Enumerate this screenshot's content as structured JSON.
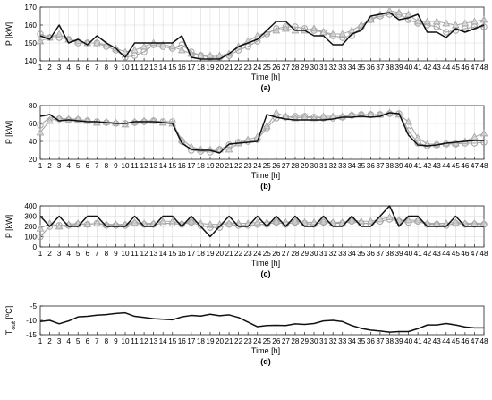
{
  "chart_data": [
    {
      "type": "line",
      "panel_label": "(a)",
      "xlabel": "Time [h]",
      "ylabel": "P [kW]",
      "ylim": [
        140,
        170
      ],
      "yticks": [
        140,
        150,
        160,
        170
      ],
      "grid": true,
      "x": [
        1,
        2,
        3,
        4,
        5,
        6,
        7,
        8,
        9,
        10,
        11,
        12,
        13,
        14,
        15,
        16,
        17,
        18,
        19,
        20,
        21,
        22,
        23,
        24,
        25,
        26,
        27,
        28,
        29,
        30,
        31,
        32,
        33,
        34,
        35,
        36,
        37,
        38,
        39,
        40,
        41,
        42,
        43,
        44,
        45,
        46,
        47,
        48
      ],
      "series": [
        {
          "style": "solid-black",
          "values": [
            154,
            152,
            160,
            150,
            152,
            149,
            154,
            150,
            147,
            142,
            150,
            150,
            150,
            150,
            150,
            154,
            142,
            141,
            141,
            141,
            144,
            148,
            150,
            152,
            157,
            162,
            162,
            157,
            157,
            154,
            154,
            149,
            149,
            155,
            157,
            165,
            166,
            167,
            163,
            164,
            166,
            156,
            156,
            153,
            158,
            156,
            158,
            160
          ]
        },
        {
          "style": "circle-gray",
          "values": [
            155,
            153,
            153,
            152,
            150,
            150,
            150,
            148,
            146,
            142,
            143,
            145,
            149,
            148,
            147,
            149,
            145,
            143,
            142,
            142,
            143,
            146,
            148,
            151,
            155,
            158,
            159,
            159,
            158,
            157,
            156,
            154,
            153,
            154,
            159,
            163,
            165,
            166,
            166,
            163,
            161,
            160,
            159,
            156,
            157,
            158,
            159,
            159
          ]
        },
        {
          "style": "triangle-gray",
          "values": [
            151,
            153,
            155,
            152,
            151,
            150,
            150,
            149,
            147,
            145,
            146,
            148,
            150,
            149,
            148,
            146,
            144,
            143,
            143,
            143,
            144,
            148,
            151,
            154,
            156,
            157,
            158,
            157,
            157,
            158,
            156,
            155,
            155,
            157,
            160,
            163,
            166,
            168,
            167,
            166,
            162,
            162,
            162,
            161,
            160,
            161,
            162,
            163
          ]
        }
      ]
    },
    {
      "type": "line",
      "panel_label": "(b)",
      "xlabel": "Time [h]",
      "ylabel": "P [kW]",
      "ylim": [
        20,
        80
      ],
      "yticks": [
        20,
        40,
        60,
        80
      ],
      "grid": true,
      "x": [
        1,
        2,
        3,
        4,
        5,
        6,
        7,
        8,
        9,
        10,
        11,
        12,
        13,
        14,
        15,
        16,
        17,
        18,
        19,
        20,
        21,
        22,
        23,
        24,
        25,
        26,
        27,
        28,
        29,
        30,
        31,
        32,
        33,
        34,
        35,
        36,
        37,
        38,
        39,
        40,
        41,
        42,
        43,
        44,
        45,
        46,
        47,
        48
      ],
      "series": [
        {
          "style": "solid-black",
          "values": [
            68,
            70,
            63,
            64,
            63,
            62,
            62,
            61,
            60,
            60,
            62,
            62,
            62,
            61,
            60,
            38,
            31,
            30,
            30,
            27,
            37,
            38,
            39,
            40,
            70,
            67,
            65,
            64,
            64,
            64,
            64,
            65,
            67,
            67,
            68,
            67,
            68,
            72,
            71,
            47,
            36,
            35,
            36,
            38,
            39,
            40,
            41,
            41
          ]
        },
        {
          "style": "circle-gray",
          "values": [
            58,
            67,
            65,
            64,
            64,
            63,
            62,
            61,
            60,
            60,
            61,
            62,
            63,
            62,
            62,
            40,
            30,
            29,
            28,
            31,
            36,
            39,
            40,
            42,
            55,
            66,
            67,
            68,
            68,
            67,
            66,
            66,
            67,
            69,
            70,
            70,
            70,
            71,
            71,
            52,
            38,
            35,
            36,
            37,
            37,
            38,
            38,
            39
          ]
        },
        {
          "style": "triangle-gray",
          "values": [
            50,
            63,
            66,
            65,
            65,
            63,
            61,
            62,
            61,
            59,
            62,
            63,
            63,
            61,
            60,
            42,
            34,
            31,
            31,
            31,
            31,
            38,
            42,
            45,
            57,
            72,
            68,
            66,
            67,
            66,
            68,
            68,
            68,
            70,
            70,
            70,
            70,
            72,
            70,
            62,
            44,
            37,
            37,
            38,
            38,
            40,
            45,
            49
          ]
        }
      ]
    },
    {
      "type": "line",
      "panel_label": "(c)",
      "xlabel": "Time [h]",
      "ylabel": "P [kW]",
      "ylim": [
        0,
        400
      ],
      "yticks": [
        0,
        100,
        200,
        300,
        400
      ],
      "grid": true,
      "x": [
        1,
        2,
        3,
        4,
        5,
        6,
        7,
        8,
        9,
        10,
        11,
        12,
        13,
        14,
        15,
        16,
        17,
        18,
        19,
        20,
        21,
        22,
        23,
        24,
        25,
        26,
        27,
        28,
        29,
        30,
        31,
        32,
        33,
        34,
        35,
        36,
        37,
        38,
        39,
        40,
        41,
        42,
        43,
        44,
        45,
        46,
        47,
        48
      ],
      "series": [
        {
          "style": "solid-black",
          "values": [
            300,
            200,
            300,
            200,
            200,
            300,
            300,
            200,
            200,
            200,
            300,
            200,
            200,
            300,
            300,
            200,
            300,
            200,
            100,
            200,
            300,
            200,
            200,
            300,
            200,
            300,
            200,
            300,
            200,
            200,
            300,
            200,
            200,
            300,
            200,
            200,
            300,
            400,
            200,
            300,
            300,
            200,
            200,
            200,
            300,
            200,
            200,
            200
          ]
        },
        {
          "style": "circle-gray",
          "values": [
            100,
            200,
            210,
            210,
            220,
            220,
            230,
            210,
            210,
            210,
            230,
            220,
            220,
            230,
            230,
            220,
            240,
            210,
            190,
            190,
            220,
            210,
            210,
            220,
            220,
            240,
            220,
            240,
            230,
            220,
            240,
            230,
            230,
            250,
            230,
            230,
            250,
            270,
            250,
            240,
            250,
            220,
            220,
            210,
            230,
            220,
            220,
            220
          ]
        },
        {
          "style": "triangle-gray",
          "values": [
            180,
            230,
            200,
            220,
            230,
            220,
            230,
            220,
            220,
            220,
            240,
            230,
            230,
            250,
            250,
            230,
            250,
            230,
            220,
            220,
            230,
            230,
            230,
            240,
            240,
            250,
            240,
            250,
            240,
            240,
            250,
            240,
            240,
            260,
            250,
            250,
            270,
            290,
            260,
            260,
            260,
            230,
            230,
            230,
            240,
            230,
            230,
            230
          ]
        }
      ]
    },
    {
      "type": "line",
      "panel_label": "(d)",
      "xlabel": "Time [h]",
      "ylabel_main": "T",
      "ylabel_sub": "out",
      "ylabel_rest": " [",
      "ylabel_unit": "°C]",
      "ylim": [
        -15,
        -5
      ],
      "yticks": [
        -15,
        -10,
        -5
      ],
      "grid": false,
      "x": [
        1,
        2,
        3,
        4,
        5,
        6,
        7,
        8,
        9,
        10,
        11,
        12,
        13,
        14,
        15,
        16,
        17,
        18,
        19,
        20,
        21,
        22,
        23,
        24,
        25,
        26,
        27,
        28,
        29,
        30,
        31,
        32,
        33,
        34,
        35,
        36,
        37,
        38,
        39,
        40,
        41,
        42,
        43,
        44,
        45,
        46,
        47,
        48
      ],
      "series": [
        {
          "style": "solid-black",
          "values": [
            -10.4,
            -10.0,
            -11.2,
            -10.2,
            -8.8,
            -8.6,
            -8.2,
            -8.0,
            -7.6,
            -7.4,
            -8.6,
            -9.0,
            -9.4,
            -9.6,
            -9.8,
            -8.8,
            -8.3,
            -8.5,
            -7.9,
            -8.4,
            -8.1,
            -9.0,
            -10.6,
            -12.2,
            -11.8,
            -11.7,
            -11.8,
            -11.2,
            -11.4,
            -11.1,
            -10.2,
            -10.0,
            -10.4,
            -11.8,
            -12.8,
            -13.4,
            -13.7,
            -14.1,
            -13.9,
            -13.9,
            -12.9,
            -11.6,
            -11.6,
            -11.1,
            -11.6,
            -12.3,
            -12.6,
            -12.6
          ]
        }
      ]
    }
  ]
}
